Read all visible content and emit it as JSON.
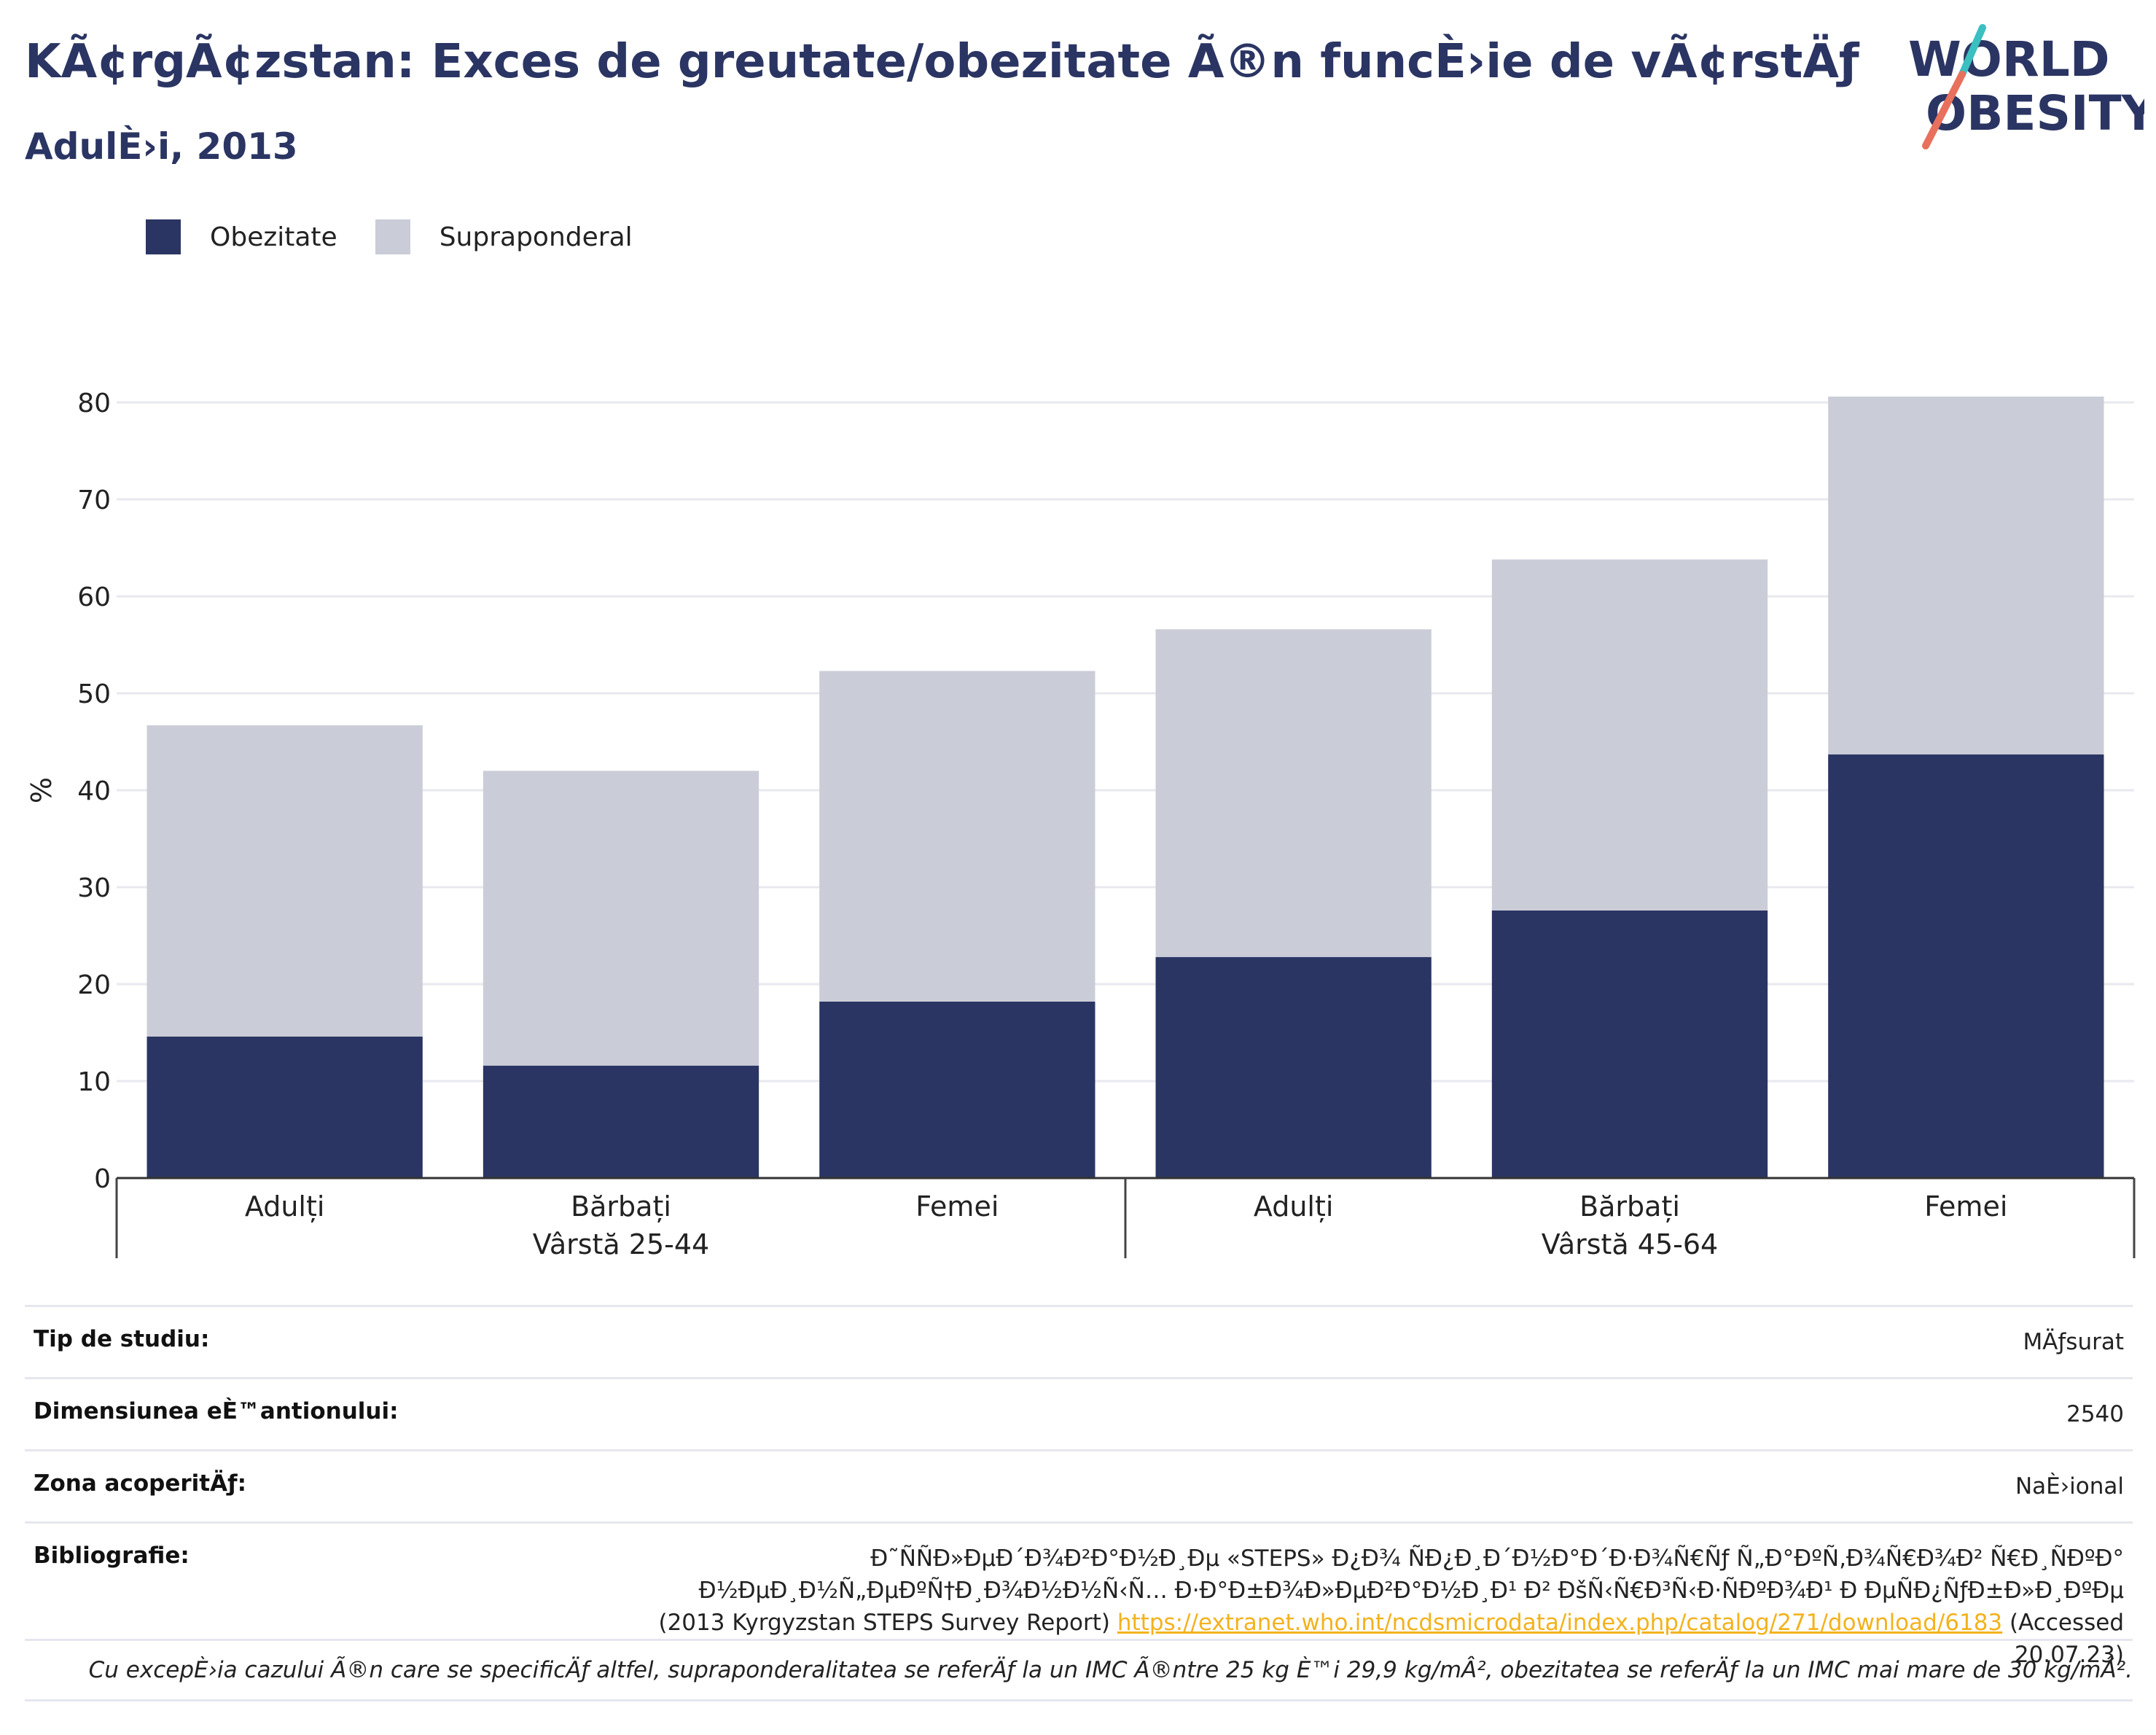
{
  "header": {
    "title": "KÃ¢rgÃ¢zstan: Exces de greutate/obezitate Ã®n funcÈ›ie de vÃ¢rstÄƒ",
    "subtitle": "AdulÈ›i, 2013"
  },
  "logo": {
    "line1": "WORLD",
    "line2": "OBESITY",
    "accent_teal": "#3bbfc1",
    "accent_coral": "#e8705d"
  },
  "legend": [
    {
      "label": "Obezitate",
      "color": "#2b3563"
    },
    {
      "label": "Supraponderal",
      "color": "#cacdd8"
    }
  ],
  "chart_data": {
    "type": "bar",
    "stacked": true,
    "ylabel": "%",
    "ylim": [
      0,
      80
    ],
    "yticks": [
      0,
      10,
      20,
      30,
      40,
      50,
      60,
      70,
      80
    ],
    "grid": true,
    "legend_position": "top-left",
    "categories": [
      "Adulți",
      "Bărbați",
      "Femei",
      "Adulți",
      "Bărbați",
      "Femei"
    ],
    "groups": [
      {
        "label": "Vârstă 25-44",
        "categories": [
          "Adulți",
          "Bărbați",
          "Femei"
        ]
      },
      {
        "label": "Vârstă 45-64",
        "categories": [
          "Adulți",
          "Bărbați",
          "Femei"
        ]
      }
    ],
    "series": [
      {
        "name": "Obezitate",
        "color": "#2b3563",
        "values": [
          14.6,
          11.6,
          18.2,
          22.8,
          27.6,
          43.7
        ]
      },
      {
        "name": "Supraponderal",
        "color": "#cacdd8",
        "values": [
          32.1,
          30.4,
          34.1,
          33.8,
          36.2,
          36.9
        ]
      }
    ]
  },
  "meta": {
    "study_type": {
      "label": "Tip de studiu:",
      "value": "MÄƒsurat"
    },
    "sample_size": {
      "label": "Dimensiunea eÈ™antionului:",
      "value": "2540"
    },
    "coverage": {
      "label": "Zona acoperitÄƒ:",
      "value": "NaÈ›ional"
    },
    "bibliography": {
      "label": "Bibliografie:",
      "line1": "Ð˜ÑÑÐ»ÐµÐ´Ð¾Ð²Ð°Ð½Ð¸Ðµ «STEPS» Ð¿Ð¾ ÑÐ¿Ð¸Ð´Ð½Ð°Ð´Ð·Ð¾Ñ€Ñƒ Ñ„Ð°ÐºÑ‚Ð¾Ñ€Ð¾Ð² Ñ€Ð¸ÑÐºÐ°",
      "line2": "Ð½ÐµÐ¸Ð½Ñ„ÐµÐºÑ†Ð¸Ð¾Ð½Ð½Ñ‹Ñ… Ð·Ð°Ð±Ð¾Ð»ÐµÐ²Ð°Ð½Ð¸Ð¹ Ð² ÐšÑ‹Ñ€Ð³Ñ‹Ð·ÑÐºÐ¾Ð¹ Ð ÐµÑÐ¿ÑƒÐ±Ð»Ð¸ÐºÐµ",
      "prefix": "(2013 Kyrgyzstan STEPS Survey Report)",
      "url": "https://extranet.who.int/ncdsmicrodata/index.php/catalog/271/download/6183",
      "suffix1": "(Accessed",
      "suffix2": "20.07.23)"
    }
  },
  "footnote": "Cu excepÈ›ia cazului Ã®n care se specificÄƒ altfel, supraponderalitatea se referÄƒ la un IMC Ã®ntre 25 kg È™i 29,9 kg/mÂ², obezitatea se referÄƒ la un IMC mai mare de 30 kg/mÂ²."
}
